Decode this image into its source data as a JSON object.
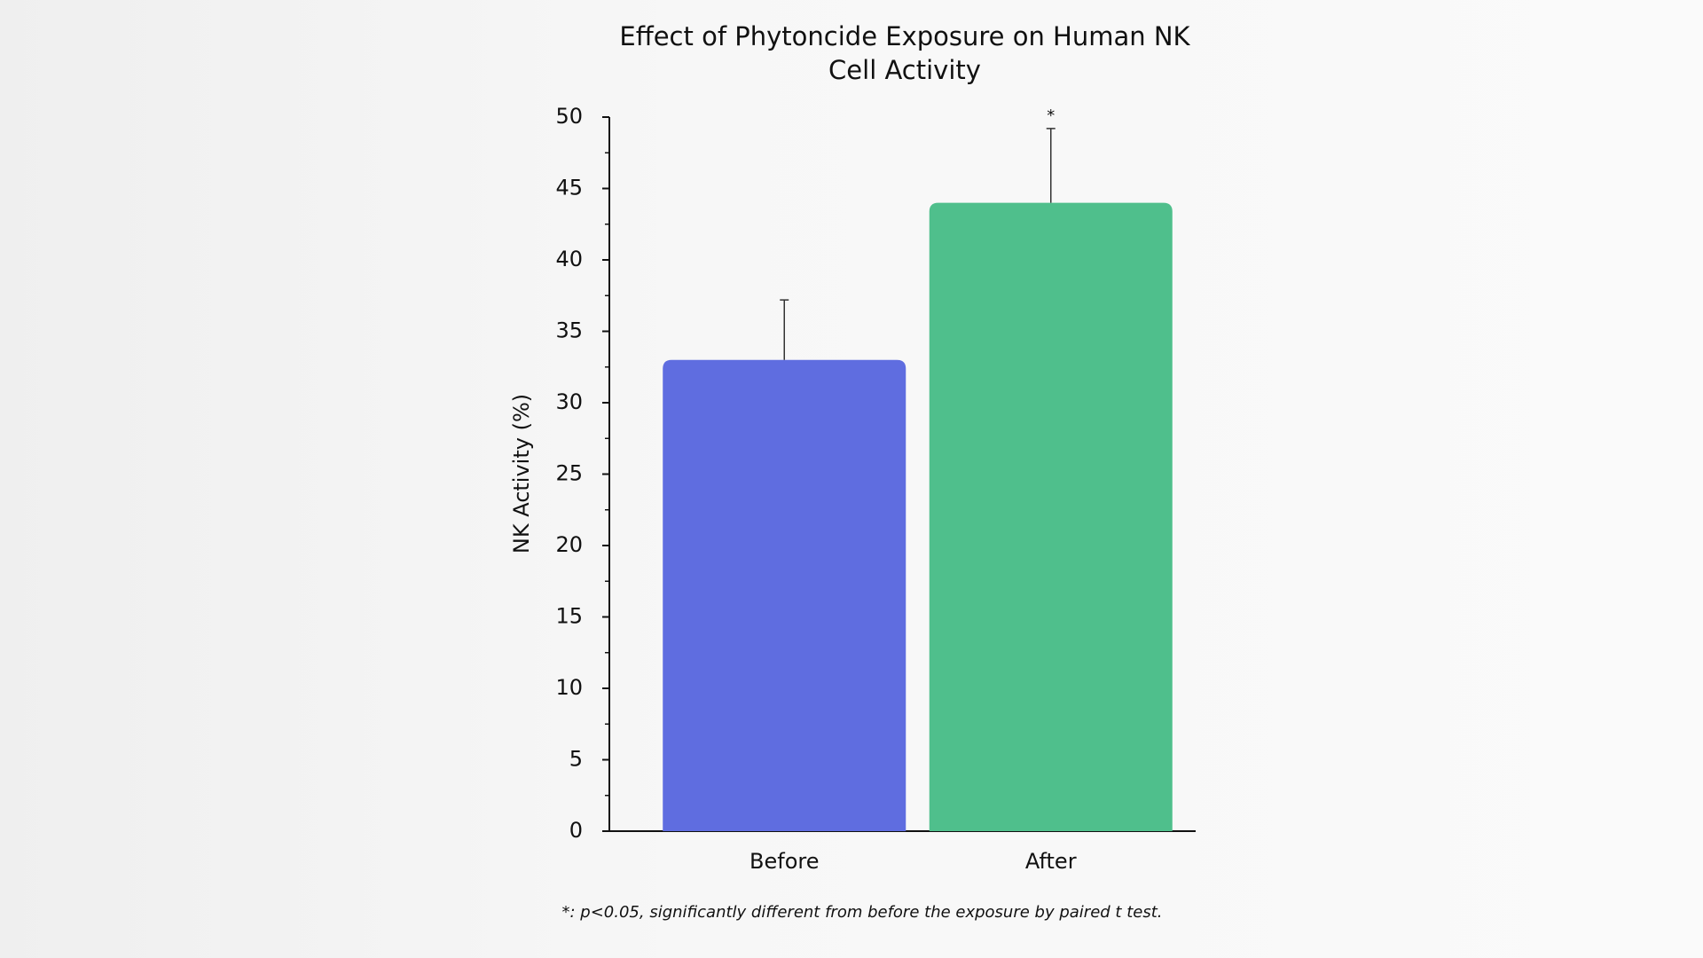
{
  "chart_data": {
    "type": "bar",
    "title": "Effect of Phytoncide Exposure on Human NK Cell Activity",
    "y_label": "NK Activity (%)",
    "categories": [
      "Before",
      "After"
    ],
    "values": [
      33,
      44
    ],
    "errors": [
      4.2,
      5.2
    ],
    "colors": [
      "#5f6de0",
      "#4fbf8c"
    ],
    "annotations": [
      {
        "category": "After",
        "text": "*"
      }
    ],
    "ylim": [
      0,
      50
    ],
    "yticks": [
      0,
      5,
      10,
      15,
      20,
      25,
      30,
      35,
      40,
      45,
      50
    ],
    "yminor_ticks": [
      2.5,
      7.5,
      12.5,
      17.5,
      22.5,
      27.5,
      32.5,
      37.5,
      42.5,
      47.5
    ],
    "grid": false,
    "footnote": "*: p<0.05, significantly different from before the exposure by paired t test."
  }
}
